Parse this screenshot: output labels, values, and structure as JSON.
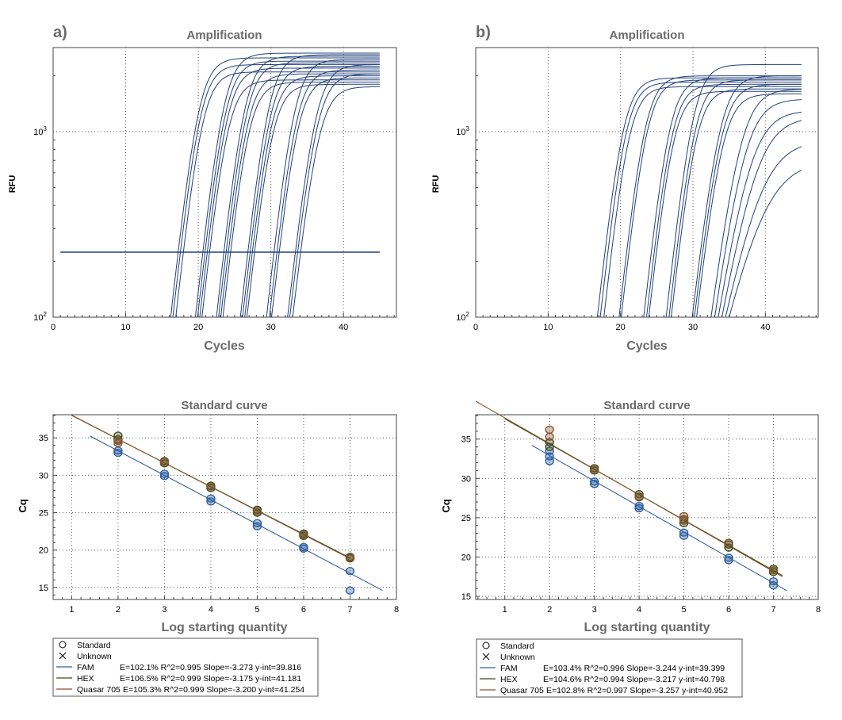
{
  "chart_data": [
    {
      "panel": "a)",
      "type": "line",
      "title": "Amplification",
      "xlabel": "Cycles",
      "ylabel": "RFU",
      "yscale": "log",
      "xlim": [
        0,
        47.3
      ],
      "ylim": [
        100,
        2840
      ],
      "xticks": [
        "0",
        "10",
        "20",
        "30",
        "40"
      ],
      "yticks": [
        "10",
        "10"
      ],
      "ytick_exp": [
        "2",
        "3"
      ],
      "threshold": 224,
      "line_color": "#22407a",
      "curves_note": "each curve: [cycle where RFU crosses 100, plateau RFU, steepness]",
      "curves": [
        [
          16.2,
          2500,
          1.2
        ],
        [
          16.5,
          2300,
          1.2
        ],
        [
          16.9,
          2100,
          1.2
        ],
        [
          19.6,
          2650,
          1.2
        ],
        [
          19.9,
          2400,
          1.2
        ],
        [
          20.2,
          2200,
          1.2
        ],
        [
          20.5,
          1900,
          1.2
        ],
        [
          22.5,
          2550,
          1.2
        ],
        [
          22.8,
          2350,
          1.2
        ],
        [
          23.1,
          2050,
          1.2
        ],
        [
          23.4,
          1850,
          1.2
        ],
        [
          25.8,
          2600,
          1.2
        ],
        [
          26.1,
          2250,
          1.2
        ],
        [
          26.4,
          2000,
          1.2
        ],
        [
          26.7,
          1800,
          1.2
        ],
        [
          29.4,
          2450,
          1.2
        ],
        [
          29.8,
          2150,
          1.2
        ],
        [
          30.1,
          1950,
          1.2
        ],
        [
          32.3,
          2300,
          1.25
        ],
        [
          32.6,
          2050,
          1.25
        ],
        [
          33.0,
          1750,
          1.25
        ]
      ]
    },
    {
      "panel": "b)",
      "type": "line",
      "title": "Amplification",
      "xlabel": "Cycles",
      "ylabel": "RFU",
      "yscale": "log",
      "xlim": [
        0,
        47.3
      ],
      "ylim": [
        100,
        2840
      ],
      "xticks": [
        "0",
        "10",
        "20",
        "30",
        "40"
      ],
      "yticks": [
        "10",
        "10"
      ],
      "ytick_exp": [
        "2",
        "3"
      ],
      "line_color": "#22407a",
      "curves": [
        [
          16.8,
          1950,
          1.2
        ],
        [
          17.2,
          1850,
          1.2
        ],
        [
          17.7,
          1750,
          1.2
        ],
        [
          19.8,
          2000,
          1.2
        ],
        [
          20.1,
          1900,
          1.2
        ],
        [
          23.2,
          1950,
          1.2
        ],
        [
          23.6,
          1800,
          1.2
        ],
        [
          23.9,
          1650,
          1.2
        ],
        [
          26.3,
          2300,
          1.2
        ],
        [
          26.7,
          1900,
          1.2
        ],
        [
          27.0,
          1700,
          1.2
        ],
        [
          29.9,
          2000,
          1.3
        ],
        [
          30.2,
          1800,
          1.3
        ],
        [
          30.5,
          1600,
          1.3
        ],
        [
          32.5,
          1700,
          1.5
        ],
        [
          33.0,
          1500,
          1.6
        ],
        [
          33.5,
          1300,
          1.8
        ],
        [
          34.0,
          1200,
          2.0
        ],
        [
          34.5,
          900,
          2.3
        ],
        [
          35.0,
          700,
          2.6
        ]
      ]
    },
    {
      "panel": "a",
      "type": "scatter",
      "title": "Standard curve",
      "xlabel": "Log starting quantity",
      "ylabel": "Cq",
      "xlim": [
        0.6,
        8
      ],
      "ylim": [
        13.4,
        38.1
      ],
      "xticks": [
        1,
        2,
        3,
        4,
        5,
        6,
        7,
        8
      ],
      "yticks": [
        15,
        20,
        25,
        30,
        35
      ],
      "series": [
        {
          "name": "FAM",
          "color": "#2f5fa0",
          "slope": -3.273,
          "yint": 39.816,
          "fit_x": [
            1.4,
            7.7
          ],
          "points": [
            [
              2,
              33.0
            ],
            [
              2,
              33.3
            ],
            [
              3,
              29.9
            ],
            [
              3,
              30.2
            ],
            [
              4,
              26.5
            ],
            [
              4,
              26.9
            ],
            [
              5,
              23.2
            ],
            [
              5,
              23.6
            ],
            [
              6,
              20.2
            ],
            [
              6,
              20.4
            ],
            [
              7,
              17.2
            ],
            [
              7,
              14.6
            ]
          ]
        },
        {
          "name": "HEX",
          "color": "#3d4d1c",
          "slope": -3.175,
          "yint": 41.181,
          "fit_x": [
            1.0,
            7.0
          ],
          "points": [
            [
              2,
              34.8
            ],
            [
              2,
              35.3
            ],
            [
              3,
              31.6
            ],
            [
              3,
              31.9
            ],
            [
              4,
              28.3
            ],
            [
              4,
              28.6
            ],
            [
              5,
              25.0
            ],
            [
              5,
              25.4
            ],
            [
              6,
              21.9
            ],
            [
              6,
              22.2
            ],
            [
              7,
              18.9
            ],
            [
              7,
              19.1
            ]
          ]
        },
        {
          "name": "Quasar 705",
          "color": "#8a5530",
          "slope": -3.2,
          "yint": 41.254,
          "fit_x": [
            1.0,
            7.0
          ],
          "points": [
            [
              2,
              34.3
            ],
            [
              2,
              34.6
            ],
            [
              3,
              31.8
            ],
            [
              4,
              28.5
            ],
            [
              5,
              25.2
            ],
            [
              6,
              22.0
            ],
            [
              7,
              19.0
            ]
          ]
        }
      ],
      "legend": {
        "standard": "Standard",
        "unknown": "Unknown",
        "rows": [
          {
            "name": "FAM",
            "stats": "E=102.1% R^2=0.995 Slope=-3.273 y-int=39.816"
          },
          {
            "name": "HEX",
            "stats": "E=106.5% R^2=0.999 Slope=-3.175 y-int=41.181"
          },
          {
            "name": "Quasar 705",
            "stats": "E=105.3% R^2=0.999 Slope=-3.200 y-int=41.254"
          }
        ]
      }
    },
    {
      "panel": "b",
      "type": "scatter",
      "title": "Standard curve",
      "xlabel": "Log starting quantity",
      "ylabel": "Cq",
      "xlim": [
        0.35,
        8
      ],
      "ylim": [
        14.6,
        38.1
      ],
      "xticks": [
        1,
        2,
        3,
        4,
        5,
        6,
        7,
        8
      ],
      "yticks": [
        15,
        20,
        25,
        30,
        35
      ],
      "series": [
        {
          "name": "FAM",
          "color": "#2f5fa0",
          "slope": -3.244,
          "yint": 39.399,
          "fit_x": [
            1.6,
            7.3
          ],
          "points": [
            [
              2,
              32.2
            ],
            [
              2,
              32.8
            ],
            [
              2,
              33.5
            ],
            [
              3,
              29.3
            ],
            [
              3,
              29.6
            ],
            [
              4,
              26.2
            ],
            [
              4,
              26.5
            ],
            [
              5,
              22.7
            ],
            [
              5,
              23.1
            ],
            [
              6,
              19.6
            ],
            [
              6,
              19.9
            ],
            [
              7,
              16.4
            ],
            [
              7,
              16.9
            ]
          ]
        },
        {
          "name": "HEX",
          "color": "#3d4d1c",
          "slope": -3.217,
          "yint": 40.798,
          "fit_x": [
            1.0,
            7.2
          ],
          "points": [
            [
              2,
              34.0
            ],
            [
              2,
              34.6
            ],
            [
              3,
              31.0
            ],
            [
              3,
              31.3
            ],
            [
              4,
              27.6
            ],
            [
              4,
              28.0
            ],
            [
              5,
              24.3
            ],
            [
              5,
              24.8
            ],
            [
              6,
              21.2
            ],
            [
              6,
              21.6
            ],
            [
              7,
              18.1
            ],
            [
              7,
              18.5
            ]
          ]
        },
        {
          "name": "Quasar 705",
          "color": "#8a5530",
          "slope": -3.257,
          "yint": 40.952,
          "fit_x": [
            0.35,
            7.2
          ],
          "points": [
            [
              2,
              35.3
            ],
            [
              2,
              36.2
            ],
            [
              3,
              31.1
            ],
            [
              4,
              27.7
            ],
            [
              5,
              25.2
            ],
            [
              5,
              24.6
            ],
            [
              6,
              21.8
            ],
            [
              7,
              18.3
            ]
          ]
        }
      ],
      "legend": {
        "standard": "Standard",
        "unknown": "Unknown",
        "rows": [
          {
            "name": "FAM",
            "stats": "E=103.4% R^2=0.996 Slope=-3.244 y-int=39.399"
          },
          {
            "name": "HEX",
            "stats": "E=104.6% R^2=0.994 Slope=-3.217 y-int=40.798"
          },
          {
            "name": "Quasar 705",
            "stats": "E=102.8% R^2=0.997 Slope=-3.257 y-int=40.952"
          }
        ]
      }
    }
  ]
}
